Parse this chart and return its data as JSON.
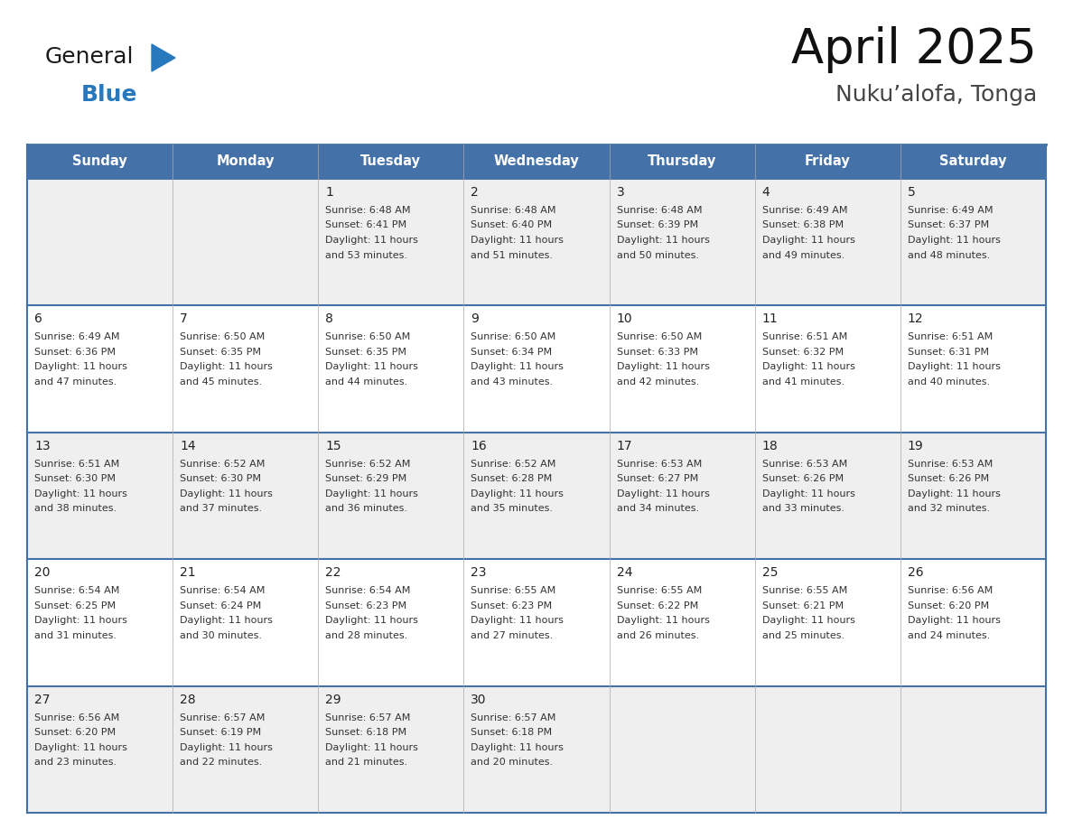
{
  "title": "April 2025",
  "subtitle": "Nuku’alofa, Tonga",
  "days_of_week": [
    "Sunday",
    "Monday",
    "Tuesday",
    "Wednesday",
    "Thursday",
    "Friday",
    "Saturday"
  ],
  "header_bg": "#4472a8",
  "header_text": "#ffffff",
  "cell_bg_light": "#efefef",
  "cell_bg_white": "#ffffff",
  "border_color": "#4472a8",
  "text_color": "#333333",
  "logo_general_color": "#1a1a1a",
  "logo_blue_color": "#2878be",
  "calendar_data": [
    [
      null,
      null,
      {
        "day": 1,
        "sunrise": "6:48 AM",
        "sunset": "6:41 PM",
        "daylight_h": "11 hours",
        "daylight_m": "and 53 minutes."
      },
      {
        "day": 2,
        "sunrise": "6:48 AM",
        "sunset": "6:40 PM",
        "daylight_h": "11 hours",
        "daylight_m": "and 51 minutes."
      },
      {
        "day": 3,
        "sunrise": "6:48 AM",
        "sunset": "6:39 PM",
        "daylight_h": "11 hours",
        "daylight_m": "and 50 minutes."
      },
      {
        "day": 4,
        "sunrise": "6:49 AM",
        "sunset": "6:38 PM",
        "daylight_h": "11 hours",
        "daylight_m": "and 49 minutes."
      },
      {
        "day": 5,
        "sunrise": "6:49 AM",
        "sunset": "6:37 PM",
        "daylight_h": "11 hours",
        "daylight_m": "and 48 minutes."
      }
    ],
    [
      {
        "day": 6,
        "sunrise": "6:49 AM",
        "sunset": "6:36 PM",
        "daylight_h": "11 hours",
        "daylight_m": "and 47 minutes."
      },
      {
        "day": 7,
        "sunrise": "6:50 AM",
        "sunset": "6:35 PM",
        "daylight_h": "11 hours",
        "daylight_m": "and 45 minutes."
      },
      {
        "day": 8,
        "sunrise": "6:50 AM",
        "sunset": "6:35 PM",
        "daylight_h": "11 hours",
        "daylight_m": "and 44 minutes."
      },
      {
        "day": 9,
        "sunrise": "6:50 AM",
        "sunset": "6:34 PM",
        "daylight_h": "11 hours",
        "daylight_m": "and 43 minutes."
      },
      {
        "day": 10,
        "sunrise": "6:50 AM",
        "sunset": "6:33 PM",
        "daylight_h": "11 hours",
        "daylight_m": "and 42 minutes."
      },
      {
        "day": 11,
        "sunrise": "6:51 AM",
        "sunset": "6:32 PM",
        "daylight_h": "11 hours",
        "daylight_m": "and 41 minutes."
      },
      {
        "day": 12,
        "sunrise": "6:51 AM",
        "sunset": "6:31 PM",
        "daylight_h": "11 hours",
        "daylight_m": "and 40 minutes."
      }
    ],
    [
      {
        "day": 13,
        "sunrise": "6:51 AM",
        "sunset": "6:30 PM",
        "daylight_h": "11 hours",
        "daylight_m": "and 38 minutes."
      },
      {
        "day": 14,
        "sunrise": "6:52 AM",
        "sunset": "6:30 PM",
        "daylight_h": "11 hours",
        "daylight_m": "and 37 minutes."
      },
      {
        "day": 15,
        "sunrise": "6:52 AM",
        "sunset": "6:29 PM",
        "daylight_h": "11 hours",
        "daylight_m": "and 36 minutes."
      },
      {
        "day": 16,
        "sunrise": "6:52 AM",
        "sunset": "6:28 PM",
        "daylight_h": "11 hours",
        "daylight_m": "and 35 minutes."
      },
      {
        "day": 17,
        "sunrise": "6:53 AM",
        "sunset": "6:27 PM",
        "daylight_h": "11 hours",
        "daylight_m": "and 34 minutes."
      },
      {
        "day": 18,
        "sunrise": "6:53 AM",
        "sunset": "6:26 PM",
        "daylight_h": "11 hours",
        "daylight_m": "and 33 minutes."
      },
      {
        "day": 19,
        "sunrise": "6:53 AM",
        "sunset": "6:26 PM",
        "daylight_h": "11 hours",
        "daylight_m": "and 32 minutes."
      }
    ],
    [
      {
        "day": 20,
        "sunrise": "6:54 AM",
        "sunset": "6:25 PM",
        "daylight_h": "11 hours",
        "daylight_m": "and 31 minutes."
      },
      {
        "day": 21,
        "sunrise": "6:54 AM",
        "sunset": "6:24 PM",
        "daylight_h": "11 hours",
        "daylight_m": "and 30 minutes."
      },
      {
        "day": 22,
        "sunrise": "6:54 AM",
        "sunset": "6:23 PM",
        "daylight_h": "11 hours",
        "daylight_m": "and 28 minutes."
      },
      {
        "day": 23,
        "sunrise": "6:55 AM",
        "sunset": "6:23 PM",
        "daylight_h": "11 hours",
        "daylight_m": "and 27 minutes."
      },
      {
        "day": 24,
        "sunrise": "6:55 AM",
        "sunset": "6:22 PM",
        "daylight_h": "11 hours",
        "daylight_m": "and 26 minutes."
      },
      {
        "day": 25,
        "sunrise": "6:55 AM",
        "sunset": "6:21 PM",
        "daylight_h": "11 hours",
        "daylight_m": "and 25 minutes."
      },
      {
        "day": 26,
        "sunrise": "6:56 AM",
        "sunset": "6:20 PM",
        "daylight_h": "11 hours",
        "daylight_m": "and 24 minutes."
      }
    ],
    [
      {
        "day": 27,
        "sunrise": "6:56 AM",
        "sunset": "6:20 PM",
        "daylight_h": "11 hours",
        "daylight_m": "and 23 minutes."
      },
      {
        "day": 28,
        "sunrise": "6:57 AM",
        "sunset": "6:19 PM",
        "daylight_h": "11 hours",
        "daylight_m": "and 22 minutes."
      },
      {
        "day": 29,
        "sunrise": "6:57 AM",
        "sunset": "6:18 PM",
        "daylight_h": "11 hours",
        "daylight_m": "and 21 minutes."
      },
      {
        "day": 30,
        "sunrise": "6:57 AM",
        "sunset": "6:18 PM",
        "daylight_h": "11 hours",
        "daylight_m": "and 20 minutes."
      },
      null,
      null,
      null
    ]
  ]
}
